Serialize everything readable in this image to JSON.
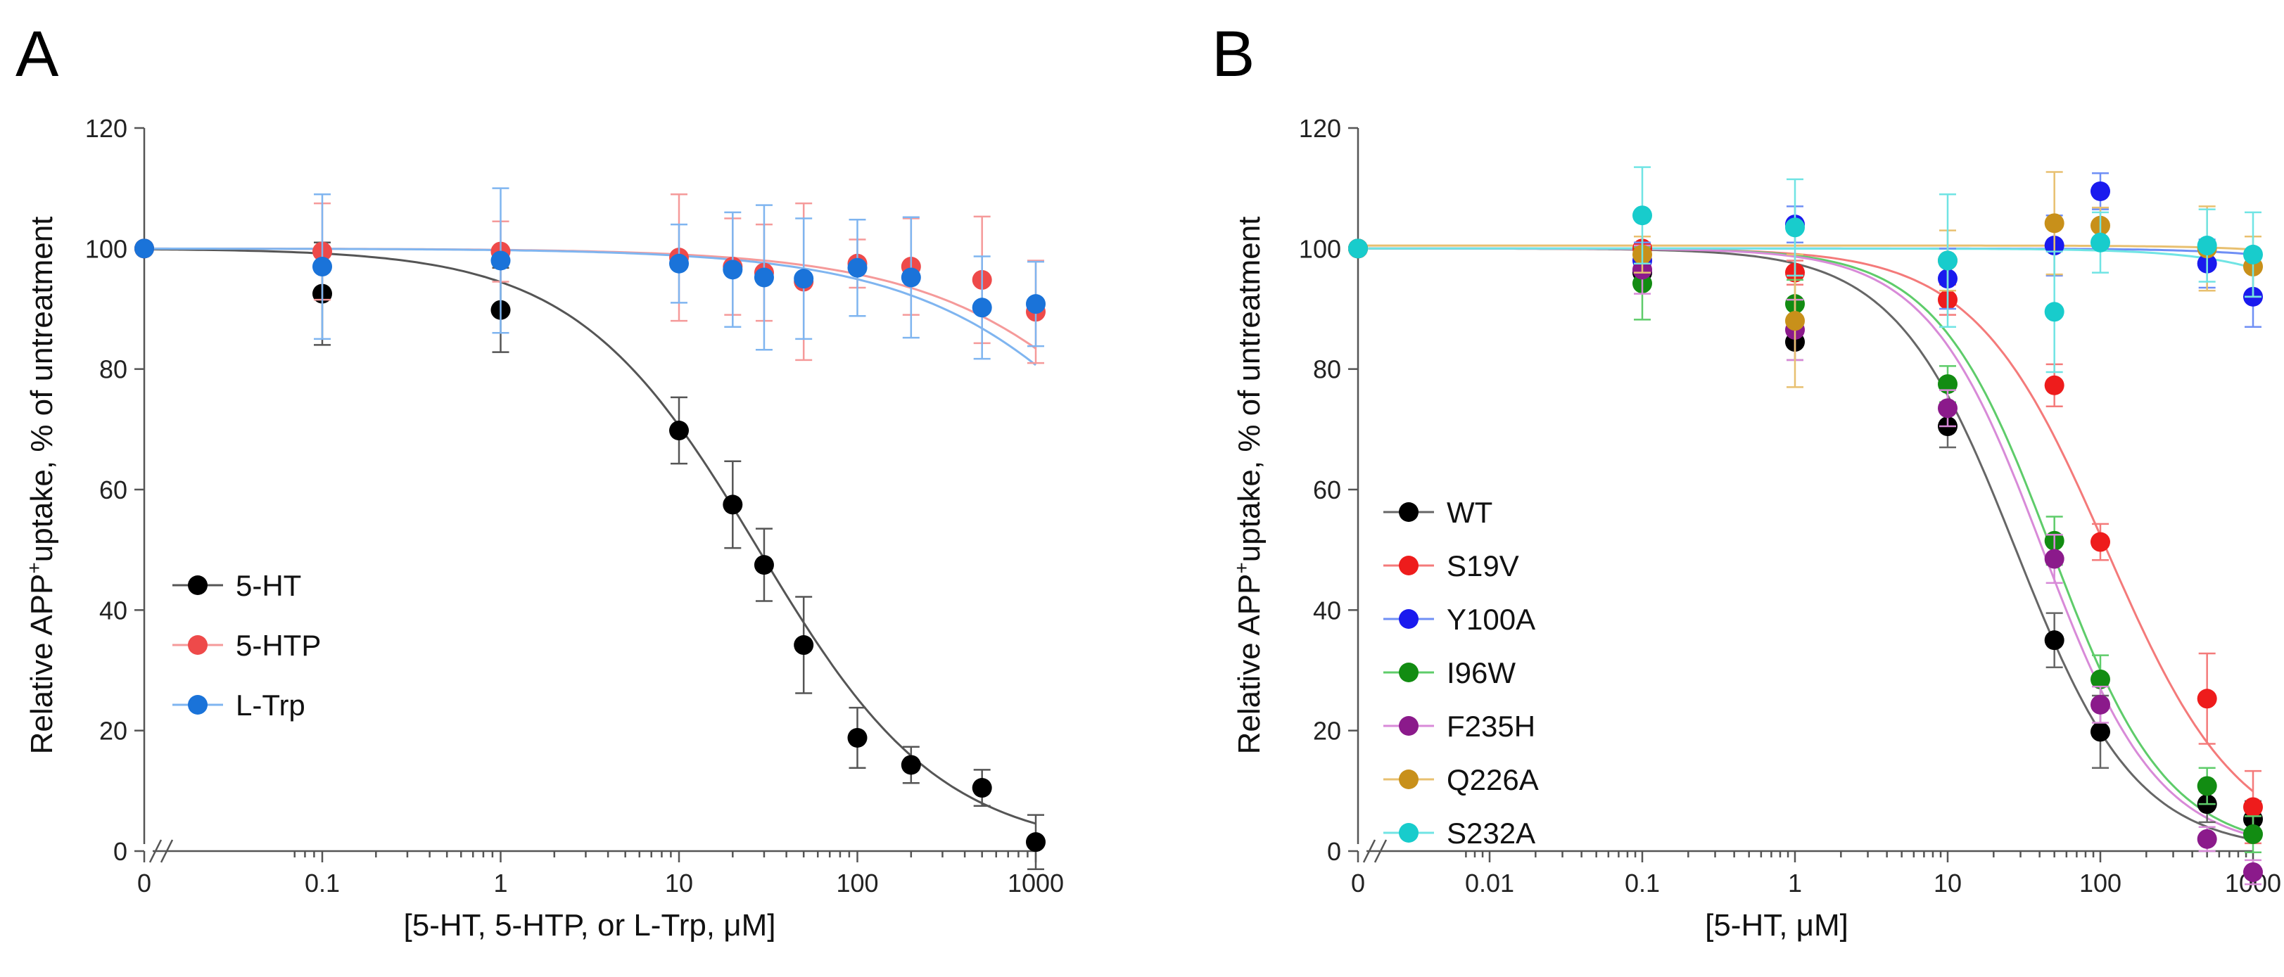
{
  "chart_data": [
    {
      "panel": "A",
      "type": "scatter",
      "title": "",
      "xlabel": "[5-HT, 5-HTP, or L-Trp, μM]",
      "ylabel_main": "Relative APP",
      "ylabel_sup": "+",
      "ylabel_rest": "uptake, % of untreatment",
      "xscale": "log-with-zero",
      "x_ticks": [
        0,
        0.1,
        1,
        10,
        100,
        1000
      ],
      "x_tick_labels": [
        "0",
        "0.1",
        "1",
        "10",
        "100",
        "1000"
      ],
      "y_ticks": [
        0,
        20,
        40,
        60,
        80,
        100,
        120
      ],
      "y_tick_labels": [
        "0",
        "20",
        "40",
        "60",
        "80",
        "100",
        "120"
      ],
      "ylim": [
        0,
        120
      ],
      "legend_position": "center-left",
      "series": [
        {
          "name": "5-HT",
          "color": "#000000",
          "line_color": "#555555",
          "x": [
            0,
            0.1,
            1,
            10,
            20,
            30,
            50,
            100,
            200,
            500,
            1000
          ],
          "y": [
            100,
            92.5,
            89.8,
            69.8,
            57.5,
            47.5,
            34.2,
            18.8,
            14.3,
            10.5,
            1.5
          ],
          "err": [
            0,
            8.5,
            7,
            5.5,
            7.2,
            6,
            8,
            5,
            3,
            3,
            4.5
          ],
          "fit": {
            "top": 100,
            "bottom": 0,
            "ec50": 28,
            "hill": 0.85
          }
        },
        {
          "name": "5-HTP",
          "color": "#ee4a4a",
          "line_color": "#f59a9a",
          "x": [
            0,
            0.1,
            1,
            10,
            20,
            30,
            50,
            100,
            200,
            500,
            1000
          ],
          "y": [
            100,
            99.5,
            99.5,
            98.5,
            97,
            96,
            94.5,
            97.5,
            97,
            94.8,
            89.5
          ],
          "err": [
            0,
            8,
            5,
            10.5,
            8,
            8,
            13,
            4,
            8,
            10.5,
            8.5
          ],
          "fit": {
            "top": 100,
            "bottom": 0,
            "ec50": 12000,
            "hill": 0.65
          }
        },
        {
          "name": "L-Trp",
          "color": "#1a73d9",
          "line_color": "#7fb5f0",
          "x": [
            0,
            0.1,
            1,
            10,
            20,
            30,
            50,
            100,
            200,
            500,
            1000
          ],
          "y": [
            100,
            97,
            98,
            97.5,
            96.5,
            95.2,
            95,
            96.8,
            95.2,
            90.2,
            90.8
          ],
          "err": [
            0,
            12,
            12,
            6.5,
            9.5,
            12,
            10,
            8,
            10,
            8.5,
            7
          ],
          "fit": {
            "top": 100,
            "bottom": 0,
            "ec50": 9000,
            "hill": 0.65
          }
        }
      ]
    },
    {
      "panel": "B",
      "type": "scatter",
      "title": "",
      "xlabel": "[5-HT, μM]",
      "ylabel_main": "Relative APP",
      "ylabel_sup": "+",
      "ylabel_rest": "uptake, % of untreatment",
      "xscale": "log-with-zero",
      "x_ticks": [
        0,
        0.01,
        0.1,
        1,
        10,
        100,
        1000
      ],
      "x_tick_labels": [
        "0",
        "0.01",
        "0.1",
        "1",
        "10",
        "100",
        "1000"
      ],
      "y_ticks": [
        0,
        20,
        40,
        60,
        80,
        100,
        120
      ],
      "y_tick_labels": [
        "0",
        "20",
        "40",
        "60",
        "80",
        "100",
        "120"
      ],
      "ylim": [
        0,
        120
      ],
      "legend_position": "lower-left",
      "series": [
        {
          "name": "WT",
          "color": "#000000",
          "line_color": "#666666",
          "x": [
            0,
            0.1,
            1,
            10,
            50,
            100,
            500,
            1000
          ],
          "y": [
            100,
            96,
            84.5,
            70.5,
            35,
            19.8,
            7.8,
            5.3
          ],
          "err": [
            0,
            2,
            3,
            3.5,
            4.5,
            6,
            3,
            3
          ],
          "fit": {
            "top": 100,
            "bottom": 0,
            "ec50": 28,
            "hill": 1.1
          }
        },
        {
          "name": "S19V",
          "color": "#ee1c1c",
          "line_color": "#f47a7a",
          "x": [
            0,
            0.1,
            1,
            10,
            50,
            100,
            500,
            1000
          ],
          "y": [
            100,
            100,
            96,
            91.5,
            77.3,
            51.3,
            25.3,
            7.3
          ],
          "err": [
            0,
            2,
            2,
            2.5,
            3.5,
            3,
            7.5,
            6
          ],
          "fit": {
            "top": 100,
            "bottom": 0,
            "ec50": 110,
            "hill": 1.0
          }
        },
        {
          "name": "Y100A",
          "color": "#1a1aee",
          "line_color": "#6f8ff5",
          "x": [
            0,
            0.1,
            1,
            10,
            50,
            100,
            500,
            1000
          ],
          "y": [
            100,
            98,
            104,
            95,
            100.5,
            109.5,
            97.5,
            92
          ],
          "err": [
            0,
            3,
            3,
            5,
            5,
            3,
            4,
            5
          ],
          "fit": {
            "top": 100,
            "bottom": 0,
            "ec50": 100000,
            "hill": 1.0
          }
        },
        {
          "name": "I96W",
          "color": "#128c12",
          "line_color": "#5ecc6a",
          "x": [
            0,
            0.1,
            1,
            10,
            50,
            100,
            500,
            1000
          ],
          "y": [
            100,
            94.2,
            90.8,
            77.5,
            51.5,
            28.5,
            10.8,
            2.8
          ],
          "err": [
            0,
            6,
            4,
            3,
            4,
            4,
            3,
            3
          ],
          "fit": {
            "top": 100,
            "bottom": 0,
            "ec50": 48,
            "hill": 1.15
          }
        },
        {
          "name": "F235H",
          "color": "#8b1a8b",
          "line_color": "#d88ad8",
          "x": [
            0,
            0.1,
            1,
            10,
            50,
            100,
            500,
            1000
          ],
          "y": [
            100,
            96.5,
            86.5,
            73.5,
            48.5,
            24.3,
            2,
            -3.5
          ],
          "err": [
            0,
            4,
            5,
            3,
            4,
            3,
            2,
            2
          ],
          "fit": {
            "top": 100,
            "bottom": 0,
            "ec50": 42,
            "hill": 1.15
          }
        },
        {
          "name": "Q226A",
          "color": "#c8901a",
          "line_color": "#e8c070",
          "x": [
            0,
            0.1,
            1,
            10,
            50,
            100,
            500,
            1000
          ],
          "y": [
            100,
            99,
            88,
            98,
            104.2,
            103.8,
            100,
            97
          ],
          "err": [
            0,
            3,
            11,
            5,
            8.5,
            3,
            7,
            5
          ],
          "fit": {
            "top": 100.5,
            "bottom": 0,
            "ec50": 150000,
            "hill": 1.0
          }
        },
        {
          "name": "S232A",
          "color": "#18cccc",
          "line_color": "#70e4e4",
          "x": [
            0,
            0.1,
            1,
            10,
            50,
            100,
            500,
            1000
          ],
          "y": [
            100,
            105.5,
            103.5,
            98,
            89.5,
            101,
            100.5,
            99
          ],
          "err": [
            0,
            8,
            8,
            11,
            10,
            5,
            6,
            7
          ],
          "fit": {
            "top": 100,
            "bottom": 0,
            "ec50": 30000,
            "hill": 1.0
          }
        }
      ]
    }
  ]
}
